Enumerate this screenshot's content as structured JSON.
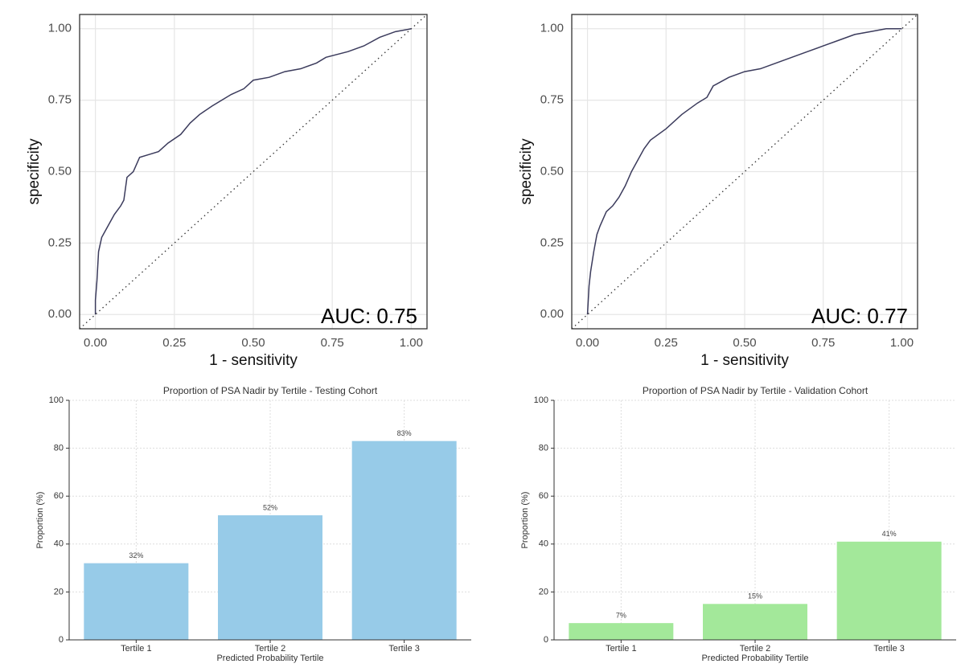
{
  "chart_data": [
    {
      "type": "line",
      "xlabel": "1 - sensitivity",
      "ylabel": "specificity",
      "annotation": "AUC: 0.75",
      "color": "#3b3b5c",
      "x": [
        0,
        0,
        0.005,
        0.01,
        0.02,
        0.04,
        0.06,
        0.08,
        0.09,
        0.1,
        0.12,
        0.14,
        0.17,
        0.2,
        0.23,
        0.27,
        0.3,
        0.33,
        0.37,
        0.4,
        0.43,
        0.47,
        0.5,
        0.55,
        0.6,
        0.65,
        0.7,
        0.73,
        0.8,
        0.85,
        0.9,
        0.95,
        1
      ],
      "values": [
        0,
        0.05,
        0.12,
        0.22,
        0.27,
        0.31,
        0.35,
        0.38,
        0.4,
        0.48,
        0.5,
        0.55,
        0.56,
        0.57,
        0.6,
        0.63,
        0.67,
        0.7,
        0.73,
        0.75,
        0.77,
        0.79,
        0.82,
        0.83,
        0.85,
        0.86,
        0.88,
        0.9,
        0.92,
        0.94,
        0.97,
        0.99,
        1
      ],
      "xlim": [
        -0.05,
        1.05
      ],
      "ylim": [
        -0.05,
        1.05
      ],
      "xticks": [
        {
          "value": 0,
          "label": "0.00"
        },
        {
          "value": 0.25,
          "label": "0.25"
        },
        {
          "value": 0.5,
          "label": "0.50"
        },
        {
          "value": 0.75,
          "label": "0.75"
        },
        {
          "value": 1,
          "label": "1.00"
        }
      ],
      "yticks": [
        {
          "value": 0,
          "label": "0.00"
        },
        {
          "value": 0.25,
          "label": "0.25"
        },
        {
          "value": 0.5,
          "label": "0.50"
        },
        {
          "value": 0.75,
          "label": "0.75"
        },
        {
          "value": 1,
          "label": "1.00"
        }
      ],
      "grid": true
    },
    {
      "type": "line",
      "xlabel": "1 - sensitivity",
      "ylabel": "specificity",
      "annotation": "AUC: 0.77",
      "color": "#3b3b5c",
      "x": [
        0,
        0.005,
        0.01,
        0.02,
        0.03,
        0.04,
        0.06,
        0.08,
        0.1,
        0.12,
        0.14,
        0.16,
        0.18,
        0.2,
        0.25,
        0.3,
        0.35,
        0.38,
        0.4,
        0.45,
        0.5,
        0.55,
        0.6,
        0.65,
        0.7,
        0.75,
        0.8,
        0.85,
        0.9,
        0.95,
        1
      ],
      "values": [
        0,
        0.1,
        0.15,
        0.22,
        0.28,
        0.31,
        0.36,
        0.38,
        0.41,
        0.45,
        0.5,
        0.54,
        0.58,
        0.61,
        0.65,
        0.7,
        0.74,
        0.76,
        0.8,
        0.83,
        0.85,
        0.86,
        0.88,
        0.9,
        0.92,
        0.94,
        0.96,
        0.98,
        0.99,
        1,
        1
      ],
      "xlim": [
        -0.05,
        1.05
      ],
      "ylim": [
        -0.05,
        1.05
      ],
      "xticks": [
        {
          "value": 0,
          "label": "0.00"
        },
        {
          "value": 0.25,
          "label": "0.25"
        },
        {
          "value": 0.5,
          "label": "0.50"
        },
        {
          "value": 0.75,
          "label": "0.75"
        },
        {
          "value": 1,
          "label": "1.00"
        }
      ],
      "yticks": [
        {
          "value": 0,
          "label": "0.00"
        },
        {
          "value": 0.25,
          "label": "0.25"
        },
        {
          "value": 0.5,
          "label": "0.50"
        },
        {
          "value": 0.75,
          "label": "0.75"
        },
        {
          "value": 1,
          "label": "1.00"
        }
      ],
      "grid": true
    },
    {
      "type": "bar",
      "title": "Proportion of PSA Nadir by Tertile - Testing Cohort",
      "xlabel": "Predicted Probability Tertile",
      "ylabel": "Proportion (%)",
      "categories": [
        "Tertile 1",
        "Tertile 2",
        "Tertile 3"
      ],
      "values": [
        32,
        52,
        83
      ],
      "value_labels": [
        "32%",
        "52%",
        "83%"
      ],
      "color": "#97cbe8",
      "ylim": [
        0,
        100
      ],
      "yticks": [
        0,
        20,
        40,
        60,
        80,
        100
      ],
      "grid": true
    },
    {
      "type": "bar",
      "title": "Proportion of PSA Nadir by Tertile - Validation Cohort",
      "xlabel": "Predicted Probability Tertile",
      "ylabel": "Proportion (%)",
      "categories": [
        "Tertile 1",
        "Tertile 2",
        "Tertile 3"
      ],
      "values": [
        7,
        15,
        41
      ],
      "value_labels": [
        "7%",
        "15%",
        "41%"
      ],
      "color": "#a3e89a",
      "ylim": [
        0,
        100
      ],
      "yticks": [
        0,
        20,
        40,
        60,
        80,
        100
      ],
      "grid": true
    }
  ]
}
